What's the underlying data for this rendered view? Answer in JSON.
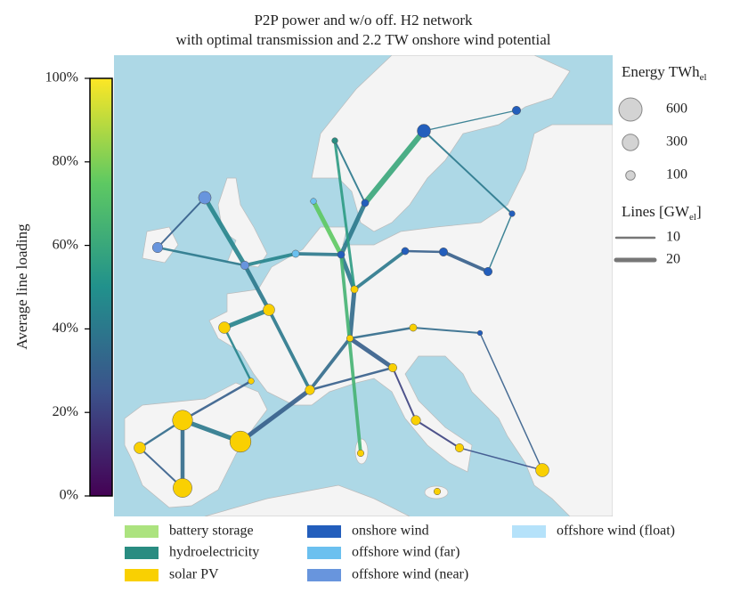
{
  "title": "P2P power and w/o off. H2 network",
  "subtitle": "with optimal transmission and 2.2 TW onshore wind potential",
  "colorbar": {
    "label": "Average line loading",
    "lim": [
      0,
      100
    ],
    "ticks": [
      {
        "value": 0,
        "label": "0%"
      },
      {
        "value": 20,
        "label": "20%"
      },
      {
        "value": 40,
        "label": "40%"
      },
      {
        "value": 60,
        "label": "60%"
      },
      {
        "value": 80,
        "label": "80%"
      },
      {
        "value": 100,
        "label": "100%"
      }
    ],
    "colormap": [
      "#440154",
      "#3b528b",
      "#21918c",
      "#5ec962",
      "#fde725"
    ]
  },
  "size_legend": {
    "title": "Energy TWh",
    "title_sub": "el",
    "entries": [
      600,
      300,
      100
    ]
  },
  "line_legend": {
    "title": "Lines [GW",
    "title_sub": "el",
    "title_end": "]",
    "entries": [
      10,
      20
    ]
  },
  "carriers": [
    {
      "name": "battery storage",
      "color": "#ace37f"
    },
    {
      "name": "hydroelectricity",
      "color": "#298c81"
    },
    {
      "name": "solar PV",
      "color": "#f9d002"
    },
    {
      "name": "onshore wind",
      "color": "#235ebc"
    },
    {
      "name": "offshore wind (far)",
      "color": "#6bc0ef"
    },
    {
      "name": "offshore wind (near)",
      "color": "#6895dd"
    },
    {
      "name": "offshore wind (float)",
      "color": "#b5e2fa"
    }
  ],
  "buses": [
    {
      "energy": 450,
      "carrier": 2
    },
    {
      "energy": 500,
      "carrier": 2
    },
    {
      "energy": 400,
      "carrier": 2
    },
    {
      "energy": 150,
      "carrier": 2
    },
    {
      "energy": 150,
      "carrier": 2
    },
    {
      "energy": 150,
      "carrier": 2
    },
    {
      "energy": 100,
      "carrier": 2
    },
    {
      "energy": 40,
      "carrier": 2
    },
    {
      "energy": 80,
      "carrier": 5
    },
    {
      "energy": 180,
      "carrier": 5
    },
    {
      "energy": 120,
      "carrier": 5
    },
    {
      "energy": 60,
      "carrier": 3
    },
    {
      "energy": 60,
      "carrier": 2
    },
    {
      "energy": 50,
      "carrier": 2
    },
    {
      "energy": 60,
      "carrier": 3
    },
    {
      "energy": 80,
      "carrier": 3
    },
    {
      "energy": 80,
      "carrier": 3
    },
    {
      "energy": 60,
      "carrier": 3
    },
    {
      "energy": 40,
      "carrier": 1
    },
    {
      "energy": 200,
      "carrier": 3
    },
    {
      "energy": 80,
      "carrier": 3
    },
    {
      "energy": 80,
      "carrier": 2
    },
    {
      "energy": 100,
      "carrier": 2
    },
    {
      "energy": 50,
      "carrier": 2
    },
    {
      "energy": 80,
      "carrier": 2
    },
    {
      "energy": 200,
      "carrier": 2
    },
    {
      "energy": 60,
      "carrier": 2
    },
    {
      "energy": 30,
      "carrier": 3
    },
    {
      "energy": 40,
      "carrier": 3
    },
    {
      "energy": 50,
      "carrier": 2
    },
    {
      "energy": 60,
      "carrier": 4
    },
    {
      "energy": 40,
      "carrier": 4
    }
  ],
  "lines": [
    {
      "loading": 40,
      "capacity": 20
    },
    {
      "loading": 35,
      "capacity": 18
    },
    {
      "loading": 35,
      "capacity": 10
    },
    {
      "loading": 30,
      "capacity": 20
    },
    {
      "loading": 30,
      "capacity": 8
    },
    {
      "loading": 30,
      "capacity": 10
    },
    {
      "loading": 45,
      "capacity": 10
    },
    {
      "loading": 45,
      "capacity": 20
    },
    {
      "loading": 40,
      "capacity": 18
    },
    {
      "loading": 40,
      "capacity": 15
    },
    {
      "loading": 35,
      "capacity": 15
    },
    {
      "loading": 35,
      "capacity": 20
    },
    {
      "loading": 40,
      "capacity": 20
    },
    {
      "loading": 40,
      "capacity": 20
    },
    {
      "loading": 60,
      "capacity": 25
    },
    {
      "loading": 40,
      "capacity": 5
    },
    {
      "loading": 40,
      "capacity": 8
    },
    {
      "loading": 40,
      "capacity": 6
    },
    {
      "loading": 30,
      "capacity": 15
    },
    {
      "loading": 30,
      "capacity": 10
    },
    {
      "loading": 40,
      "capacity": 15
    },
    {
      "loading": 35,
      "capacity": 10
    },
    {
      "loading": 35,
      "capacity": 8
    },
    {
      "loading": 30,
      "capacity": 10
    },
    {
      "loading": 30,
      "capacity": 20
    },
    {
      "loading": 20,
      "capacity": 8
    },
    {
      "loading": 20,
      "capacity": 8
    },
    {
      "loading": 65,
      "capacity": 15
    },
    {
      "loading": 25,
      "capacity": 6
    },
    {
      "loading": 30,
      "capacity": 6
    },
    {
      "loading": 45,
      "capacity": 20
    },
    {
      "loading": 30,
      "capacity": 8
    },
    {
      "loading": 45,
      "capacity": 15
    },
    {
      "loading": 40,
      "capacity": 15
    },
    {
      "loading": 75,
      "capacity": 20
    },
    {
      "loading": 55,
      "capacity": 12
    },
    {
      "loading": 40,
      "capacity": 10
    },
    {
      "loading": 40,
      "capacity": 8
    }
  ]
}
